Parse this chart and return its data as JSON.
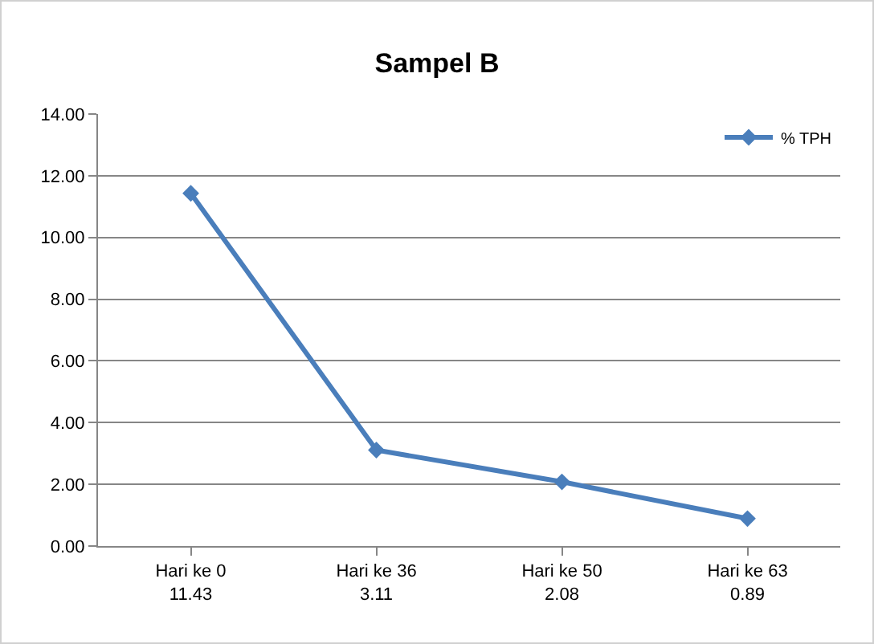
{
  "chart_data": {
    "type": "line",
    "title": "Sampel B",
    "categories": [
      "Hari ke 0",
      "Hari ke 36",
      "Hari ke 50",
      "Hari ke 63"
    ],
    "series": [
      {
        "name": "% TPH",
        "color": "#4a7ebb",
        "values": [
          11.43,
          3.11,
          2.08,
          0.89
        ]
      }
    ],
    "ylim": [
      0,
      14
    ],
    "yticks": [
      {
        "value": 0,
        "label": "0.00"
      },
      {
        "value": 2,
        "label": "2.00"
      },
      {
        "value": 4,
        "label": "4.00"
      },
      {
        "value": 6,
        "label": "6.00"
      },
      {
        "value": 8,
        "label": "8.00"
      },
      {
        "value": 10,
        "label": "10.00"
      },
      {
        "value": 12,
        "label": "12.00"
      },
      {
        "value": 14,
        "label": "14.00"
      }
    ],
    "grid": "y",
    "legend": "top right",
    "marker": "diamond",
    "line_style": "solid",
    "data_labels": true
  }
}
